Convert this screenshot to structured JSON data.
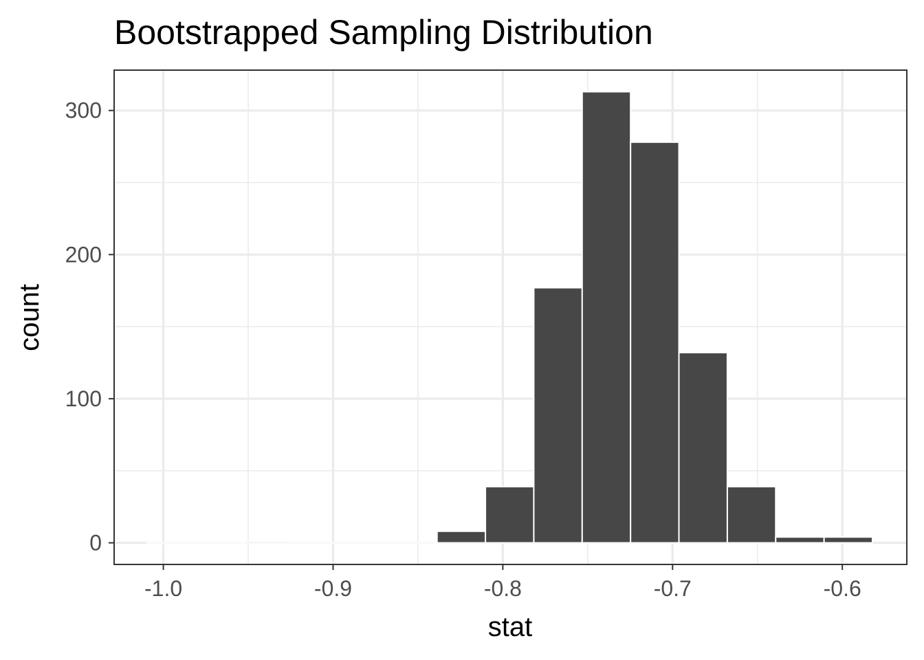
{
  "chart_data": {
    "type": "bar",
    "title": "Bootstrapped Sampling Distribution",
    "xlabel": "stat",
    "ylabel": "count",
    "xlim": [
      -1.029,
      -0.562
    ],
    "ylim": [
      -15,
      328
    ],
    "x_ticks": [
      -1.0,
      -0.9,
      -0.8,
      -0.7,
      -0.6
    ],
    "x_tick_labels": [
      "-1.0",
      "-0.9",
      "-0.8",
      "-0.7",
      "-0.6"
    ],
    "y_ticks": [
      0,
      100,
      200,
      300
    ],
    "y_tick_labels": [
      "0",
      "100",
      "200",
      "300"
    ],
    "grid": true,
    "bin_width": 0.0285,
    "bins": [
      {
        "center": -0.9955,
        "count": 0
      },
      {
        "center": -0.967,
        "count": 0
      },
      {
        "center": -0.9385,
        "count": 1
      },
      {
        "center": -0.91,
        "count": 0
      },
      {
        "center": -0.8815,
        "count": 0
      },
      {
        "center": -0.853,
        "count": 0
      },
      {
        "center": -0.8245,
        "count": 8
      },
      {
        "center": -0.796,
        "count": 39
      },
      {
        "center": -0.7675,
        "count": 177
      },
      {
        "center": -0.739,
        "count": 313
      },
      {
        "center": -0.7105,
        "count": 278
      },
      {
        "center": -0.682,
        "count": 132
      },
      {
        "center": -0.6535,
        "count": 39
      },
      {
        "center": -0.625,
        "count": 4
      },
      {
        "center": -0.5965,
        "count": 4
      }
    ],
    "colors": {
      "bar_fill": "#474747",
      "bar_outline": "#ffffff"
    }
  }
}
